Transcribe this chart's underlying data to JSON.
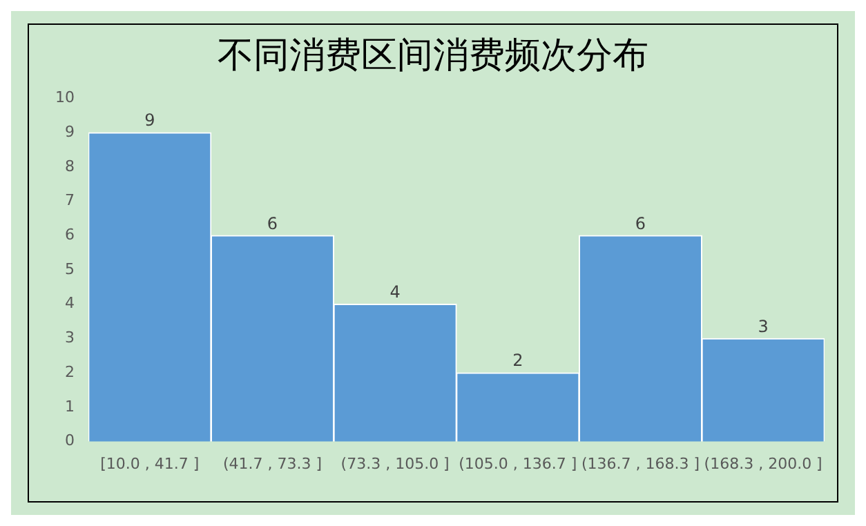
{
  "chart_data": {
    "type": "bar",
    "title": "不同消费区间消费频次分布",
    "categories": [
      "[10.0 , 41.7 ]",
      "(41.7 , 73.3 ]",
      "(73.3 , 105.0 ]",
      "(105.0 , 136.7 ]",
      "(136.7 , 168.3 ]",
      "(168.3 , 200.0 ]"
    ],
    "values": [
      9,
      6,
      4,
      2,
      6,
      3
    ],
    "color": "#5b9bd5",
    "ylim": [
      0,
      10
    ],
    "yticks": [
      0,
      1,
      2,
      3,
      4,
      5,
      6,
      7,
      8,
      9,
      10
    ],
    "grid": false,
    "legend": false,
    "data_labels": true
  }
}
